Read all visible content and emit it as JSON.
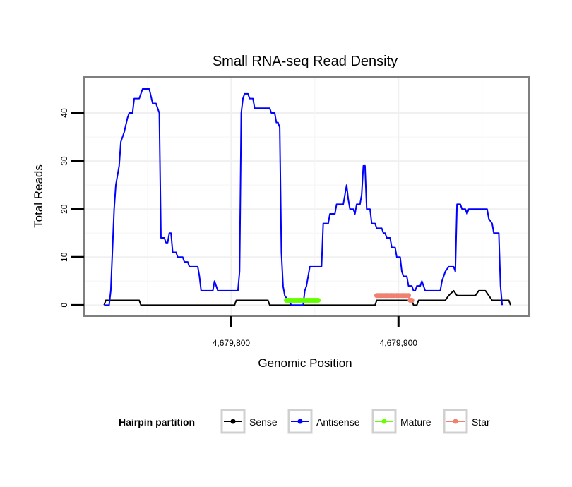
{
  "chart_data": {
    "type": "line",
    "title": "Small RNA-seq Read Density",
    "xlabel": "Genomic Position",
    "ylabel": "Total Reads",
    "xlim": [
      4679712,
      4679978
    ],
    "ylim": [
      -2.3,
      47.5
    ],
    "x_ticks": [
      4679800,
      4679900
    ],
    "x_tick_labels": [
      "4,679,800",
      "4,679,900"
    ],
    "y_ticks": [
      0,
      10,
      20,
      30,
      40
    ],
    "y_tick_labels": [
      "0",
      "10",
      "20",
      "30",
      "40"
    ],
    "grid": true,
    "legend": {
      "title": "Hairpin partition",
      "position": "bottom"
    },
    "series": [
      {
        "name": "Sense",
        "color": "#000000",
        "points": [
          [
            4679724,
            0
          ],
          [
            4679725,
            1
          ],
          [
            4679745,
            1
          ],
          [
            4679746,
            0
          ],
          [
            4679802,
            0
          ],
          [
            4679803,
            1
          ],
          [
            4679822,
            1
          ],
          [
            4679823,
            0
          ],
          [
            4679886,
            0
          ],
          [
            4679887,
            1
          ],
          [
            4679908,
            1
          ],
          [
            4679909,
            0
          ],
          [
            4679911,
            0
          ],
          [
            4679912,
            1
          ],
          [
            4679928,
            1
          ],
          [
            4679930,
            2
          ],
          [
            4679933,
            3
          ],
          [
            4679935,
            2
          ],
          [
            4679946,
            2
          ],
          [
            4679948,
            3
          ],
          [
            4679952,
            3
          ],
          [
            4679954,
            2
          ],
          [
            4679956,
            1
          ],
          [
            4679966,
            1
          ],
          [
            4679967,
            0
          ]
        ]
      },
      {
        "name": "Antisense",
        "color": "#0000ff",
        "points": [
          [
            4679724,
            0
          ],
          [
            4679727,
            0
          ],
          [
            4679728,
            3
          ],
          [
            4679730,
            20
          ],
          [
            4679731,
            25
          ],
          [
            4679732,
            27
          ],
          [
            4679733,
            29
          ],
          [
            4679734,
            34
          ],
          [
            4679736,
            36
          ],
          [
            4679738,
            39
          ],
          [
            4679739,
            40
          ],
          [
            4679741,
            40
          ],
          [
            4679742,
            43
          ],
          [
            4679745,
            43
          ],
          [
            4679747,
            45
          ],
          [
            4679751,
            45
          ],
          [
            4679753,
            42
          ],
          [
            4679755,
            42
          ],
          [
            4679756,
            41
          ],
          [
            4679757,
            40
          ],
          [
            4679758,
            14
          ],
          [
            4679760,
            14
          ],
          [
            4679761,
            13
          ],
          [
            4679762,
            13
          ],
          [
            4679763,
            15
          ],
          [
            4679764,
            15
          ],
          [
            4679765,
            11
          ],
          [
            4679767,
            11
          ],
          [
            4679768,
            10
          ],
          [
            4679771,
            10
          ],
          [
            4679772,
            9
          ],
          [
            4679774,
            9
          ],
          [
            4679775,
            8
          ],
          [
            4679780,
            8
          ],
          [
            4679781,
            6
          ],
          [
            4679782,
            3
          ],
          [
            4679789,
            3
          ],
          [
            4679790,
            5
          ],
          [
            4679792,
            3
          ],
          [
            4679804,
            3
          ],
          [
            4679805,
            7
          ],
          [
            4679806,
            40
          ],
          [
            4679807,
            43
          ],
          [
            4679808,
            44
          ],
          [
            4679810,
            44
          ],
          [
            4679811,
            43
          ],
          [
            4679813,
            43
          ],
          [
            4679814,
            41
          ],
          [
            4679823,
            41
          ],
          [
            4679824,
            40
          ],
          [
            4679826,
            40
          ],
          [
            4679827,
            38
          ],
          [
            4679828,
            38
          ],
          [
            4679829,
            37
          ],
          [
            4679830,
            11
          ],
          [
            4679831,
            4
          ],
          [
            4679832,
            2
          ],
          [
            4679834,
            1
          ],
          [
            4679836,
            0
          ],
          [
            4679843,
            0
          ],
          [
            4679844,
            3
          ],
          [
            4679845,
            4
          ],
          [
            4679846,
            6
          ],
          [
            4679847,
            8
          ],
          [
            4679854,
            8
          ],
          [
            4679855,
            17
          ],
          [
            4679858,
            17
          ],
          [
            4679859,
            19
          ],
          [
            4679862,
            19
          ],
          [
            4679863,
            21
          ],
          [
            4679867,
            21
          ],
          [
            4679868,
            23
          ],
          [
            4679869,
            25
          ],
          [
            4679870,
            22
          ],
          [
            4679871,
            20
          ],
          [
            4679873,
            20
          ],
          [
            4679874,
            19
          ],
          [
            4679875,
            21
          ],
          [
            4679877,
            21
          ],
          [
            4679878,
            23
          ],
          [
            4679879,
            29
          ],
          [
            4679880,
            29
          ],
          [
            4679881,
            20
          ],
          [
            4679883,
            20
          ],
          [
            4679884,
            17
          ],
          [
            4679886,
            17
          ],
          [
            4679887,
            16
          ],
          [
            4679890,
            16
          ],
          [
            4679891,
            15
          ],
          [
            4679892,
            15
          ],
          [
            4679893,
            14
          ],
          [
            4679895,
            14
          ],
          [
            4679896,
            12
          ],
          [
            4679898,
            12
          ],
          [
            4679899,
            10
          ],
          [
            4679901,
            10
          ],
          [
            4679902,
            7
          ],
          [
            4679903,
            6
          ],
          [
            4679905,
            6
          ],
          [
            4679906,
            4
          ],
          [
            4679908,
            4
          ],
          [
            4679909,
            3
          ],
          [
            4679910,
            3
          ],
          [
            4679911,
            4
          ],
          [
            4679913,
            4
          ],
          [
            4679914,
            5
          ],
          [
            4679915,
            4
          ],
          [
            4679916,
            3
          ],
          [
            4679925,
            3
          ],
          [
            4679926,
            5
          ],
          [
            4679928,
            7
          ],
          [
            4679930,
            8
          ],
          [
            4679933,
            8
          ],
          [
            4679934,
            7
          ],
          [
            4679935,
            21
          ],
          [
            4679937,
            21
          ],
          [
            4679938,
            20
          ],
          [
            4679940,
            20
          ],
          [
            4679941,
            19
          ],
          [
            4679942,
            20
          ],
          [
            4679953,
            20
          ],
          [
            4679954,
            18
          ],
          [
            4679956,
            17
          ],
          [
            4679957,
            15
          ],
          [
            4679960,
            15
          ],
          [
            4679961,
            4
          ],
          [
            4679962,
            0
          ]
        ]
      },
      {
        "name": "Mature",
        "color": "#66ff00",
        "points": [
          [
            4679833,
            1
          ],
          [
            4679834,
            1
          ],
          [
            4679835,
            1
          ],
          [
            4679836,
            1
          ],
          [
            4679837,
            1
          ],
          [
            4679838,
            1
          ],
          [
            4679839,
            1
          ],
          [
            4679840,
            1
          ],
          [
            4679841,
            1
          ],
          [
            4679842,
            1
          ],
          [
            4679843,
            1
          ],
          [
            4679844,
            1
          ],
          [
            4679845,
            1
          ],
          [
            4679846,
            1
          ],
          [
            4679847,
            1
          ],
          [
            4679848,
            1
          ],
          [
            4679849,
            1
          ],
          [
            4679850,
            1
          ],
          [
            4679851,
            1
          ],
          [
            4679852,
            1
          ]
        ]
      },
      {
        "name": "Star",
        "color": "#f08070",
        "points": [
          [
            4679887,
            2
          ],
          [
            4679888,
            2
          ],
          [
            4679889,
            2
          ],
          [
            4679890,
            2
          ],
          [
            4679891,
            2
          ],
          [
            4679892,
            2
          ],
          [
            4679893,
            2
          ],
          [
            4679894,
            2
          ],
          [
            4679895,
            2
          ],
          [
            4679896,
            2
          ],
          [
            4679897,
            2
          ],
          [
            4679898,
            2
          ],
          [
            4679899,
            2
          ],
          [
            4679900,
            2
          ],
          [
            4679901,
            2
          ],
          [
            4679902,
            2
          ],
          [
            4679903,
            2
          ],
          [
            4679904,
            2
          ],
          [
            4679905,
            2
          ],
          [
            4679906,
            2
          ],
          [
            4679907,
            1
          ],
          [
            4679908,
            1
          ]
        ]
      }
    ]
  }
}
